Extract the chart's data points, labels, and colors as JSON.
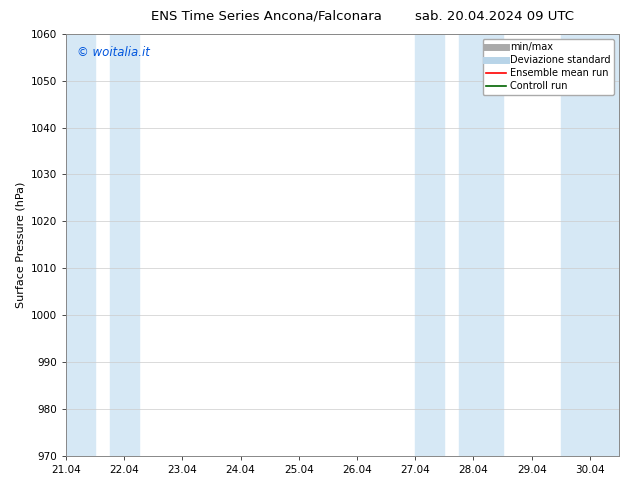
{
  "title_left": "ENS Time Series Ancona/Falconara",
  "title_right": "sab. 20.04.2024 09 UTC",
  "ylabel": "Surface Pressure (hPa)",
  "ylim": [
    970,
    1060
  ],
  "yticks": [
    970,
    980,
    990,
    1000,
    1010,
    1020,
    1030,
    1040,
    1050,
    1060
  ],
  "xtick_labels": [
    "21.04",
    "22.04",
    "23.04",
    "24.04",
    "25.04",
    "26.04",
    "27.04",
    "28.04",
    "29.04",
    "30.04"
  ],
  "xlim": [
    0,
    9.5
  ],
  "shaded_bands": [
    {
      "x_start": 0.0,
      "x_end": 0.5,
      "color": "#d6e8f5"
    },
    {
      "x_start": 0.75,
      "x_end": 1.25,
      "color": "#d6e8f5"
    },
    {
      "x_start": 6.0,
      "x_end": 6.5,
      "color": "#d6e8f5"
    },
    {
      "x_start": 6.75,
      "x_end": 7.5,
      "color": "#d6e8f5"
    },
    {
      "x_start": 8.5,
      "x_end": 9.5,
      "color": "#d6e8f5"
    }
  ],
  "watermark_text": "© woitalia.it",
  "watermark_color": "#0055dd",
  "legend_items": [
    {
      "label": "min/max",
      "color": "#aaaaaa",
      "lw": 5
    },
    {
      "label": "Deviazione standard",
      "color": "#b8d4e8",
      "lw": 5
    },
    {
      "label": "Ensemble mean run",
      "color": "red",
      "lw": 1.2
    },
    {
      "label": "Controll run",
      "color": "darkgreen",
      "lw": 1.2
    }
  ],
  "bg_color": "#ffffff",
  "grid_color": "#cccccc",
  "title_fontsize": 9.5,
  "tick_fontsize": 7.5,
  "ylabel_fontsize": 8
}
